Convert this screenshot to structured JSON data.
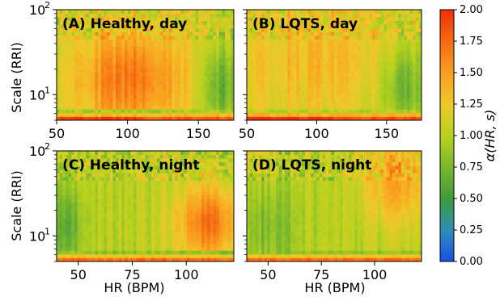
{
  "chart_data": {
    "type": "heatmap",
    "colorbar": {
      "label": "α(HR, s)",
      "range": [
        0,
        2
      ],
      "ticks": [
        "0.00",
        "0.25",
        "0.50",
        "0.75",
        "1.00",
        "1.25",
        "1.50",
        "1.75",
        "2.00"
      ],
      "colors": [
        "#1a4fe8",
        "#2e8fb8",
        "#3f9b3a",
        "#7ab82e",
        "#b8d21e",
        "#f0c82a",
        "#fa9e1f",
        "#f56a12",
        "#f03008"
      ]
    },
    "y_axis": {
      "label": "Scale (RRI)",
      "scale": "log",
      "range": [
        5,
        100
      ],
      "major_ticks": [
        10,
        100
      ],
      "major_tick_labels": [
        "10",
        "10"
      ],
      "tick_exponents": [
        "1",
        "2"
      ]
    },
    "panels": [
      {
        "id": "A",
        "title": "(A) Healthy, day",
        "x_range": [
          50,
          175
        ],
        "x_ticks": [
          50,
          100,
          150
        ],
        "x_tick_labels": [
          "50",
          "100",
          "150"
        ],
        "xlabel": "",
        "description_values": {
          "base_level": 1.1,
          "peak_level": 1.7,
          "peak_hr": [
            75,
            130
          ],
          "peak_scale": [
            6,
            40
          ],
          "low_hr": [
            155,
            175
          ],
          "low_level": 0.6
        }
      },
      {
        "id": "B",
        "title": "(B) LQTS, day",
        "x_range": [
          50,
          175
        ],
        "x_ticks": [
          50,
          100,
          150
        ],
        "x_tick_labels": [
          "50",
          "100",
          "150"
        ],
        "xlabel": "",
        "description_values": {
          "base_level": 1.15,
          "peak_level": 1.35,
          "peak_hr": [
            70,
            140
          ],
          "peak_scale": [
            10,
            60
          ],
          "low_hr": [
            150,
            175
          ],
          "low_level": 0.65
        }
      },
      {
        "id": "C",
        "title": "(C) Healthy, night",
        "x_range": [
          40,
          122
        ],
        "x_ticks": [
          50,
          75,
          100
        ],
        "x_tick_labels": [
          "50",
          "75",
          "100"
        ],
        "xlabel": "HR (BPM)",
        "description_values": {
          "base_level": 1.0,
          "peak_level": 1.7,
          "peak_hr": [
            100,
            122
          ],
          "peak_scale": [
            7,
            30
          ],
          "low_hr": [
            40,
            50
          ],
          "low_level": 0.55
        }
      },
      {
        "id": "D",
        "title": "(D) LQTS, night",
        "x_range": [
          40,
          122
        ],
        "x_ticks": [
          50,
          75,
          100
        ],
        "x_tick_labels": [
          "50",
          "75",
          "100"
        ],
        "xlabel": "HR (BPM)",
        "description_values": {
          "base_level": 1.0,
          "peak_level": 1.45,
          "peak_hr": [
            100,
            122
          ],
          "peak_scale": [
            20,
            100
          ],
          "low_hr": [
            40,
            60
          ],
          "low_level": 0.75
        }
      }
    ]
  }
}
